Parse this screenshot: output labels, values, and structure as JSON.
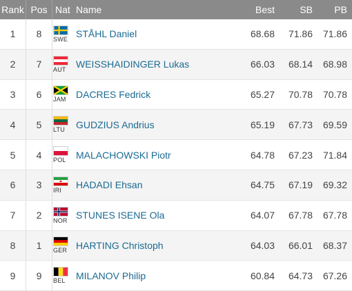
{
  "header": {
    "rank": "Rank",
    "pos": "Pos",
    "nat": "Nat",
    "name": "Name",
    "best": "Best",
    "sb": "SB",
    "pb": "PB"
  },
  "rows": [
    {
      "rank": "1",
      "pos": "8",
      "code": "SWE",
      "flag": "sweden-flag-icon",
      "name": "STÅHL Daniel",
      "best": "68.68",
      "sb": "71.86",
      "pb": "71.86"
    },
    {
      "rank": "2",
      "pos": "7",
      "code": "AUT",
      "flag": "austria-flag-icon",
      "name": "WEISSHAIDINGER Lukas",
      "best": "66.03",
      "sb": "68.14",
      "pb": "68.98"
    },
    {
      "rank": "3",
      "pos": "6",
      "code": "JAM",
      "flag": "jamaica-flag-icon",
      "name": "DACRES Fedrick",
      "best": "65.27",
      "sb": "70.78",
      "pb": "70.78"
    },
    {
      "rank": "4",
      "pos": "5",
      "code": "LTU",
      "flag": "lithuania-flag-icon",
      "name": "GUDZIUS Andrius",
      "best": "65.19",
      "sb": "67.73",
      "pb": "69.59"
    },
    {
      "rank": "5",
      "pos": "4",
      "code": "POL",
      "flag": "poland-flag-icon",
      "name": "MALACHOWSKI Piotr",
      "best": "64.78",
      "sb": "67.23",
      "pb": "71.84"
    },
    {
      "rank": "6",
      "pos": "3",
      "code": "IRI",
      "flag": "iran-flag-icon",
      "name": "HADADI Ehsan",
      "best": "64.75",
      "sb": "67.19",
      "pb": "69.32"
    },
    {
      "rank": "7",
      "pos": "2",
      "code": "NOR",
      "flag": "norway-flag-icon",
      "name": "STUNES ISENE Ola",
      "best": "64.07",
      "sb": "67.78",
      "pb": "67.78"
    },
    {
      "rank": "8",
      "pos": "1",
      "code": "GER",
      "flag": "germany-flag-icon",
      "name": "HARTING Christoph",
      "best": "64.03",
      "sb": "66.01",
      "pb": "68.37"
    },
    {
      "rank": "9",
      "pos": "9",
      "code": "BEL",
      "flag": "belgium-flag-icon",
      "name": "MILANOV Philip",
      "best": "60.84",
      "sb": "64.73",
      "pb": "67.26"
    }
  ]
}
